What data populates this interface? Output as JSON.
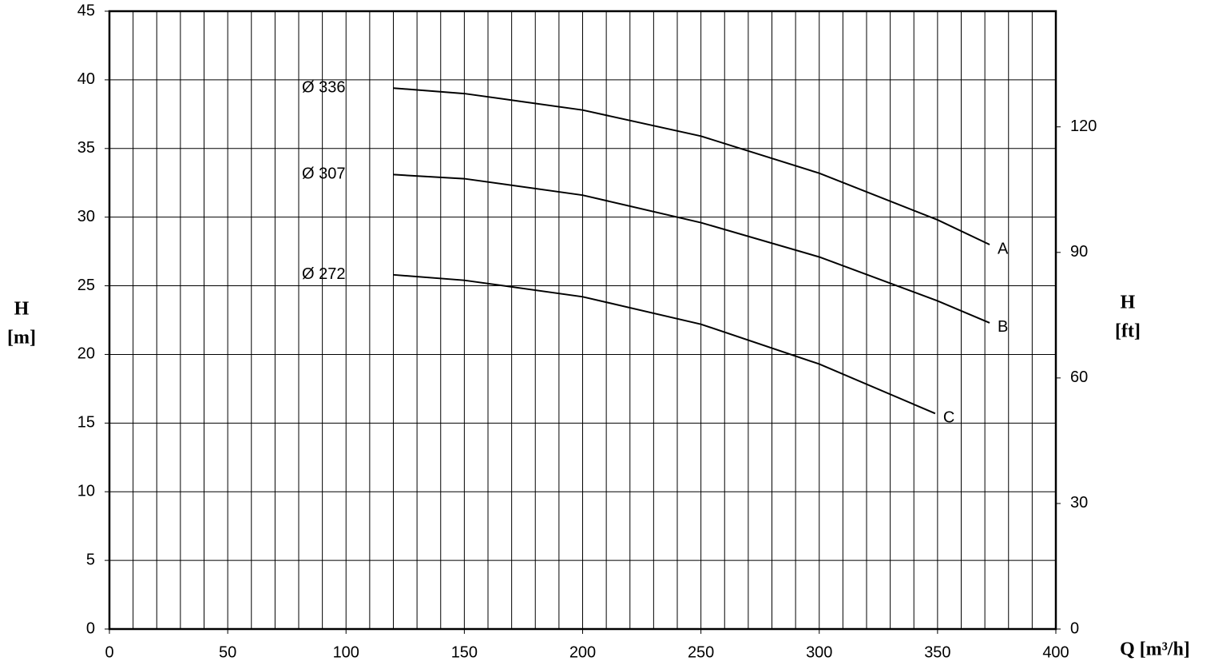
{
  "chart_data": {
    "type": "line",
    "xlabel": "Q [m³/h]",
    "ylabel": [
      "H",
      "[m]"
    ],
    "y2label": [
      "H",
      "[ft]"
    ],
    "xlim": [
      0,
      400
    ],
    "xticks": [
      0,
      50,
      100,
      150,
      200,
      250,
      300,
      350,
      400
    ],
    "xgrid_step": 10,
    "ylim": [
      0,
      45
    ],
    "yticks": [
      0,
      5,
      10,
      15,
      20,
      25,
      30,
      35,
      40,
      45
    ],
    "y2lim": [
      0,
      147.64
    ],
    "y2ticks": [
      0,
      30,
      60,
      90,
      120
    ],
    "grid": true,
    "series": [
      {
        "name": "A",
        "label": "Ø 336",
        "color": "#000000",
        "x": [
          120,
          150,
          200,
          250,
          300,
          350,
          372
        ],
        "values": [
          39.4,
          39.0,
          37.8,
          35.9,
          33.2,
          29.8,
          28.0
        ]
      },
      {
        "name": "B",
        "label": "Ø 307",
        "color": "#000000",
        "x": [
          120,
          150,
          200,
          250,
          300,
          350,
          372
        ],
        "values": [
          33.1,
          32.8,
          31.6,
          29.6,
          27.1,
          23.9,
          22.3
        ]
      },
      {
        "name": "C",
        "label": "Ø 272",
        "color": "#000000",
        "x": [
          120,
          150,
          200,
          250,
          300,
          349
        ],
        "values": [
          25.8,
          25.4,
          24.2,
          22.2,
          19.3,
          15.7
        ]
      }
    ]
  }
}
